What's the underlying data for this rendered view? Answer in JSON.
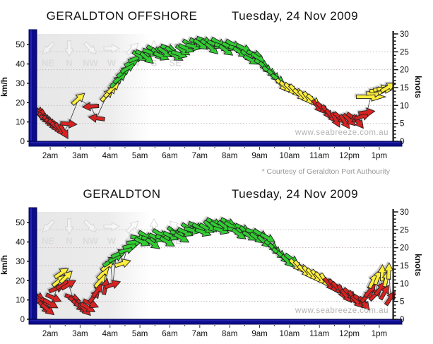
{
  "footnote": "* Courtesy of Geraldton Port Authourity",
  "colors": {
    "green": "#33cc33",
    "yellow": "#ffee3c",
    "red": "#d92121",
    "arrow_outline": "#222222",
    "axis_navy": "#0c0c8c",
    "axis_navy_dark": "#050550",
    "right_axis_black": "#111111",
    "grid_dotted": "#c9baba",
    "plot_gray": "#e7e7e7",
    "compass_gray": "#d5d5d5",
    "line_black": "#333333",
    "watermark_gray": "#b4b4b4"
  },
  "thresholds": {
    "yellow_min_kmh": 19,
    "green_min_kmh": 30
  },
  "chart_data": [
    {
      "type": "scatter",
      "variant": "wind-arrows-time-series",
      "title": "GERALDTON OFFSHORE",
      "date": "Tuesday, 24 Nov 2009",
      "watermark": "www.seabreeze.com.au",
      "ylabel_left": "km/h",
      "ylabel_right": "knots",
      "y_left_ticks": [
        0,
        10,
        20,
        30,
        40,
        50
      ],
      "y_right_ticks": [
        0,
        5,
        10,
        15,
        20,
        25,
        30
      ],
      "ylim_kmh": [
        0,
        55.56
      ],
      "ylim_knots": [
        0,
        30
      ],
      "xlim_hours": [
        1.55,
        13.45
      ],
      "x_ticks": [
        {
          "label": "2am",
          "hour": 2
        },
        {
          "label": "3am",
          "hour": 3
        },
        {
          "label": "4am",
          "hour": 4
        },
        {
          "label": "5am",
          "hour": 5
        },
        {
          "label": "6am",
          "hour": 6
        },
        {
          "label": "7am",
          "hour": 7
        },
        {
          "label": "8am",
          "hour": 8
        },
        {
          "label": "9am",
          "hour": 9
        },
        {
          "label": "10am",
          "hour": 10
        },
        {
          "label": "11am",
          "hour": 11
        },
        {
          "label": "12pm",
          "hour": 12
        },
        {
          "label": "1pm",
          "hour": 13
        }
      ],
      "compass_watermark": [
        {
          "label": "NE",
          "arrow_deg": 135
        },
        {
          "label": "N",
          "arrow_deg": 90
        },
        {
          "label": "NW",
          "arrow_deg": 45
        },
        {
          "label": "W",
          "arrow_deg": 0
        },
        {
          "label": "SW",
          "arrow_deg": -45
        },
        {
          "label": "S",
          "arrow_deg": -90
        },
        {
          "label": "SE",
          "arrow_deg": -135
        }
      ],
      "points_format": [
        "time_hours",
        "speed_kmh",
        "arrow_heading_deg_cw_from_east",
        "optional_length_scale"
      ],
      "points": [
        [
          1.58,
          16,
          35
        ],
        [
          1.66,
          15,
          28
        ],
        [
          1.74,
          13,
          32
        ],
        [
          1.82,
          12,
          38
        ],
        [
          1.9,
          11,
          30
        ],
        [
          1.98,
          10,
          42
        ],
        [
          2.06,
          9,
          36
        ],
        [
          2.14,
          8,
          46
        ],
        [
          2.24,
          7,
          40
        ],
        [
          2.34,
          6,
          52
        ],
        [
          2.46,
          5,
          60
        ],
        [
          2.62,
          9,
          4
        ],
        [
          2.95,
          22,
          -42
        ],
        [
          3.35,
          18,
          176
        ],
        [
          3.55,
          12,
          188
        ],
        [
          3.9,
          24,
          -46
        ],
        [
          4.02,
          26,
          -44
        ],
        [
          4.12,
          28,
          -45
        ],
        [
          4.22,
          31,
          -44
        ],
        [
          4.34,
          33,
          -40
        ],
        [
          4.46,
          36,
          -38
        ],
        [
          4.6,
          38,
          -33
        ],
        [
          4.74,
          41,
          -28
        ],
        [
          4.88,
          43,
          -22
        ],
        [
          5.0,
          44,
          32
        ],
        [
          5.12,
          45,
          22
        ],
        [
          5.24,
          43,
          40
        ],
        [
          5.36,
          46,
          18
        ],
        [
          5.48,
          47,
          30
        ],
        [
          5.6,
          45,
          44
        ],
        [
          5.72,
          44,
          24
        ],
        [
          5.84,
          46,
          34
        ],
        [
          5.96,
          48,
          20
        ],
        [
          6.08,
          46,
          40
        ],
        [
          6.2,
          44,
          30
        ],
        [
          6.32,
          45,
          18
        ],
        [
          6.44,
          47,
          34
        ],
        [
          6.56,
          48,
          24
        ],
        [
          6.68,
          50,
          30
        ],
        [
          6.8,
          49,
          14
        ],
        [
          6.92,
          51,
          26
        ],
        [
          7.04,
          50,
          36
        ],
        [
          7.16,
          52,
          20
        ],
        [
          7.28,
          50,
          30
        ],
        [
          7.4,
          48,
          42
        ],
        [
          7.52,
          50,
          24
        ],
        [
          7.64,
          51,
          30
        ],
        [
          7.76,
          49,
          18
        ],
        [
          7.88,
          47,
          36
        ],
        [
          8.0,
          49,
          24
        ],
        [
          8.12,
          50,
          30
        ],
        [
          8.24,
          48,
          14
        ],
        [
          8.36,
          46,
          34
        ],
        [
          8.48,
          48,
          26
        ],
        [
          8.6,
          44,
          42
        ],
        [
          8.72,
          42,
          30
        ],
        [
          8.84,
          45,
          20
        ],
        [
          8.96,
          43,
          36
        ],
        [
          9.08,
          40,
          30
        ],
        [
          9.2,
          38,
          42
        ],
        [
          9.34,
          36,
          34
        ],
        [
          9.48,
          34,
          42
        ],
        [
          9.62,
          32,
          36
        ],
        [
          9.76,
          29,
          46
        ],
        [
          9.9,
          28,
          40
        ],
        [
          10.05,
          27,
          42
        ],
        [
          10.2,
          26,
          46
        ],
        [
          10.35,
          24,
          40
        ],
        [
          10.5,
          23,
          46
        ],
        [
          10.65,
          22,
          52
        ],
        [
          10.8,
          21,
          44
        ],
        [
          10.95,
          18,
          50
        ],
        [
          11.1,
          17,
          46
        ],
        [
          11.25,
          15,
          56
        ],
        [
          11.4,
          13,
          50
        ],
        [
          11.55,
          11,
          62
        ],
        [
          11.7,
          12,
          40
        ],
        [
          11.85,
          10,
          56
        ],
        [
          12.0,
          11,
          44
        ],
        [
          12.15,
          12,
          34
        ],
        [
          12.3,
          10,
          52
        ],
        [
          12.45,
          13,
          -18
        ],
        [
          12.58,
          15,
          -8
        ],
        [
          12.72,
          23,
          0,
          1.8
        ],
        [
          12.84,
          25,
          -4
        ],
        [
          12.96,
          26,
          0
        ],
        [
          13.08,
          27,
          -8
        ],
        [
          13.2,
          27,
          0
        ],
        [
          13.3,
          28,
          -30
        ]
      ]
    },
    {
      "type": "scatter",
      "variant": "wind-arrows-time-series",
      "title": "GERALDTON",
      "date": "Tuesday, 24 Nov 2009",
      "watermark": "www.seabreeze.com.au",
      "ylabel_left": "km/h",
      "ylabel_right": "knots",
      "y_left_ticks": [
        0,
        10,
        20,
        30,
        40,
        50
      ],
      "y_right_ticks": [
        0,
        5,
        10,
        15,
        20,
        25,
        30
      ],
      "ylim_kmh": [
        0,
        55.56
      ],
      "ylim_knots": [
        0,
        30
      ],
      "xlim_hours": [
        1.55,
        13.45
      ],
      "x_ticks": [
        {
          "label": "2am",
          "hour": 2
        },
        {
          "label": "3am",
          "hour": 3
        },
        {
          "label": "4am",
          "hour": 4
        },
        {
          "label": "5am",
          "hour": 5
        },
        {
          "label": "6am",
          "hour": 6
        },
        {
          "label": "7am",
          "hour": 7
        },
        {
          "label": "8am",
          "hour": 8
        },
        {
          "label": "9am",
          "hour": 9
        },
        {
          "label": "10am",
          "hour": 10
        },
        {
          "label": "11am",
          "hour": 11
        },
        {
          "label": "12pm",
          "hour": 12
        },
        {
          "label": "1pm",
          "hour": 13
        }
      ],
      "compass_watermark": [
        {
          "label": "NE",
          "arrow_deg": 135
        },
        {
          "label": "N",
          "arrow_deg": 90
        },
        {
          "label": "NW",
          "arrow_deg": 45
        },
        {
          "label": "W",
          "arrow_deg": 0
        },
        {
          "label": "SW",
          "arrow_deg": -45
        },
        {
          "label": "S",
          "arrow_deg": -90
        },
        {
          "label": "SE",
          "arrow_deg": -135
        }
      ],
      "points_format": [
        "time_hours",
        "speed_kmh",
        "arrow_heading_deg_cw_from_east",
        "optional_length_scale"
      ],
      "points": [
        [
          1.58,
          12,
          32
        ],
        [
          1.66,
          10,
          40
        ],
        [
          1.74,
          8,
          36
        ],
        [
          1.82,
          6,
          46
        ],
        [
          1.92,
          5,
          40
        ],
        [
          2.02,
          8,
          30
        ],
        [
          2.12,
          11,
          24
        ],
        [
          2.22,
          16,
          -22
        ],
        [
          2.3,
          20,
          -40
        ],
        [
          2.38,
          24,
          -34
        ],
        [
          2.46,
          18,
          -26
        ],
        [
          2.54,
          22,
          -44
        ],
        [
          2.62,
          18,
          -30
        ],
        [
          2.76,
          11,
          20
        ],
        [
          2.86,
          9,
          32
        ],
        [
          2.96,
          7,
          40
        ],
        [
          3.06,
          6,
          34
        ],
        [
          3.16,
          5,
          46
        ],
        [
          3.26,
          6,
          30
        ],
        [
          3.36,
          8,
          24
        ],
        [
          3.48,
          12,
          -50
        ],
        [
          3.58,
          15,
          -56
        ],
        [
          3.68,
          20,
          -50
        ],
        [
          3.78,
          24,
          -46
        ],
        [
          3.85,
          17,
          -78
        ],
        [
          3.93,
          28,
          -40
        ],
        [
          4.01,
          30,
          -34
        ],
        [
          4.09,
          18,
          -20
        ],
        [
          4.2,
          32,
          -30
        ],
        [
          4.31,
          34,
          -24
        ],
        [
          4.43,
          29,
          -18
        ],
        [
          4.56,
          36,
          -20
        ],
        [
          4.7,
          38,
          -14
        ],
        [
          4.83,
          40,
          -8
        ],
        [
          4.96,
          42,
          12
        ],
        [
          5.08,
          40,
          26
        ],
        [
          5.2,
          43,
          32
        ],
        [
          5.32,
          41,
          20
        ],
        [
          5.44,
          39,
          36
        ],
        [
          5.56,
          42,
          26
        ],
        [
          5.68,
          44,
          30
        ],
        [
          5.8,
          42,
          14
        ],
        [
          5.92,
          40,
          30
        ],
        [
          6.04,
          43,
          26
        ],
        [
          6.16,
          45,
          36
        ],
        [
          6.28,
          44,
          20
        ],
        [
          6.4,
          42,
          30
        ],
        [
          6.52,
          45,
          24
        ],
        [
          6.64,
          47,
          32
        ],
        [
          6.76,
          46,
          14
        ],
        [
          6.88,
          48,
          26
        ],
        [
          7.0,
          47,
          32
        ],
        [
          7.12,
          45,
          20
        ],
        [
          7.24,
          47,
          30
        ],
        [
          7.36,
          48,
          42
        ],
        [
          7.48,
          50,
          26
        ],
        [
          7.6,
          48,
          32
        ],
        [
          7.72,
          46,
          18
        ],
        [
          7.84,
          48,
          36
        ],
        [
          7.96,
          50,
          26
        ],
        [
          8.08,
          48,
          30
        ],
        [
          8.2,
          46,
          14
        ],
        [
          8.32,
          44,
          36
        ],
        [
          8.44,
          47,
          26
        ],
        [
          8.56,
          45,
          42
        ],
        [
          8.68,
          43,
          30
        ],
        [
          8.8,
          45,
          20
        ],
        [
          8.92,
          42,
          36
        ],
        [
          9.04,
          44,
          30
        ],
        [
          9.16,
          40,
          42
        ],
        [
          9.28,
          42,
          30
        ],
        [
          9.4,
          38,
          36
        ],
        [
          9.52,
          36,
          42
        ],
        [
          9.66,
          34,
          36
        ],
        [
          9.8,
          32,
          42
        ],
        [
          9.94,
          30,
          46
        ],
        [
          10.08,
          31,
          36
        ],
        [
          10.22,
          28,
          42
        ],
        [
          10.36,
          27,
          46
        ],
        [
          10.5,
          25,
          40
        ],
        [
          10.64,
          24,
          50
        ],
        [
          10.78,
          23,
          46
        ],
        [
          10.92,
          22,
          52
        ],
        [
          11.06,
          21,
          46
        ],
        [
          11.2,
          20,
          56
        ],
        [
          11.34,
          18,
          50
        ],
        [
          11.48,
          17,
          56
        ],
        [
          11.62,
          16,
          46
        ],
        [
          11.76,
          14,
          62
        ],
        [
          11.9,
          12,
          52
        ],
        [
          12.02,
          13,
          42
        ],
        [
          12.14,
          11,
          56
        ],
        [
          12.26,
          9,
          46
        ],
        [
          12.38,
          10,
          32
        ],
        [
          12.5,
          8,
          52
        ],
        [
          12.6,
          12,
          -42
        ],
        [
          12.7,
          15,
          -50
        ],
        [
          12.8,
          20,
          -62
        ],
        [
          12.88,
          13,
          -46
        ],
        [
          12.96,
          22,
          -70
        ],
        [
          13.04,
          16,
          -52
        ],
        [
          13.1,
          24,
          -88
        ],
        [
          13.18,
          14,
          -60
        ],
        [
          13.24,
          21,
          -76
        ],
        [
          13.32,
          25,
          -88
        ],
        [
          13.38,
          11,
          -56
        ]
      ]
    }
  ]
}
